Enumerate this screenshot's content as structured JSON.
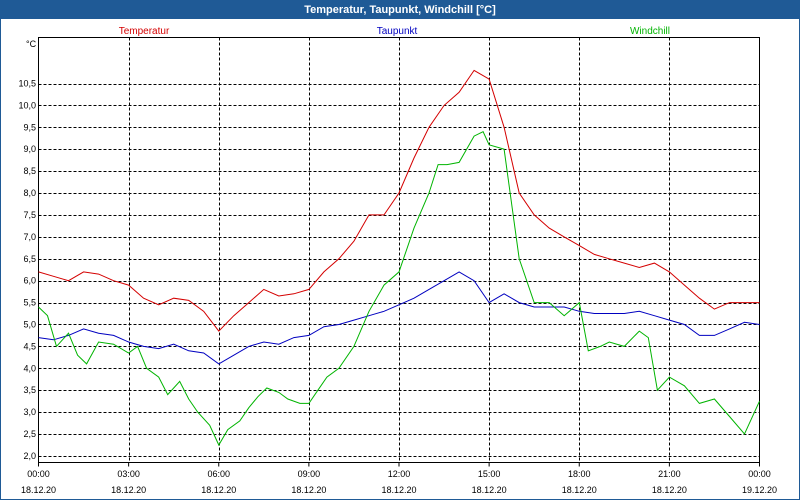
{
  "window": {
    "title": "Temperatur, Taupunkt, Windchill [°C]"
  },
  "chart_data": {
    "type": "line",
    "ylabel": "°C",
    "ylim": [
      1.85,
      11.55
    ],
    "yticks": [
      "2,0",
      "2,5",
      "3,0",
      "3,5",
      "4,0",
      "4,5",
      "5,0",
      "5,5",
      "6,0",
      "6,5",
      "7,0",
      "7,5",
      "8,0",
      "8,5",
      "9,0",
      "9,5",
      "10,0",
      "10,5"
    ],
    "xtick_times": [
      "00:00",
      "03:00",
      "06:00",
      "09:00",
      "12:00",
      "15:00",
      "18:00",
      "21:00",
      "00:00"
    ],
    "xtick_dates": [
      "18.12.20",
      "18.12.20",
      "18.12.20",
      "18.12.20",
      "18.12.20",
      "18.12.20",
      "18.12.20",
      "18.12.20",
      "19.12.20"
    ],
    "grid": true,
    "legend": "top",
    "series": [
      {
        "name": "Temperatur",
        "color": "#d40000",
        "points": [
          [
            0,
            6.2
          ],
          [
            0.5,
            6.1
          ],
          [
            1,
            6.0
          ],
          [
            1.5,
            6.2
          ],
          [
            2,
            6.15
          ],
          [
            2.5,
            6.0
          ],
          [
            3,
            5.9
          ],
          [
            3.5,
            5.6
          ],
          [
            4,
            5.45
          ],
          [
            4.5,
            5.6
          ],
          [
            5,
            5.55
          ],
          [
            5.5,
            5.3
          ],
          [
            6,
            4.85
          ],
          [
            6.5,
            5.2
          ],
          [
            7,
            5.5
          ],
          [
            7.5,
            5.8
          ],
          [
            8,
            5.65
          ],
          [
            8.5,
            5.7
          ],
          [
            9,
            5.8
          ],
          [
            9.5,
            6.2
          ],
          [
            10,
            6.5
          ],
          [
            10.5,
            6.9
          ],
          [
            11,
            7.5
          ],
          [
            11.5,
            7.5
          ],
          [
            12,
            8.0
          ],
          [
            12.5,
            8.8
          ],
          [
            13,
            9.5
          ],
          [
            13.5,
            10.0
          ],
          [
            14,
            10.3
          ],
          [
            14.5,
            10.8
          ],
          [
            15,
            10.6
          ],
          [
            15.5,
            9.5
          ],
          [
            16,
            8.0
          ],
          [
            16.5,
            7.5
          ],
          [
            17,
            7.2
          ],
          [
            17.5,
            7.0
          ],
          [
            18,
            6.8
          ],
          [
            18.5,
            6.6
          ],
          [
            19,
            6.5
          ],
          [
            19.5,
            6.4
          ],
          [
            20,
            6.3
          ],
          [
            20.5,
            6.4
          ],
          [
            21,
            6.2
          ],
          [
            21.5,
            5.9
          ],
          [
            22,
            5.6
          ],
          [
            22.5,
            5.35
          ],
          [
            23,
            5.5
          ],
          [
            23.5,
            5.5
          ],
          [
            24,
            5.5
          ]
        ]
      },
      {
        "name": "Taupunkt",
        "color": "#0000c0",
        "points": [
          [
            0,
            4.7
          ],
          [
            0.5,
            4.65
          ],
          [
            1,
            4.75
          ],
          [
            1.5,
            4.9
          ],
          [
            2,
            4.8
          ],
          [
            2.5,
            4.75
          ],
          [
            3,
            4.6
          ],
          [
            3.5,
            4.5
          ],
          [
            4,
            4.45
          ],
          [
            4.5,
            4.55
          ],
          [
            5,
            4.4
          ],
          [
            5.5,
            4.35
          ],
          [
            6,
            4.1
          ],
          [
            6.5,
            4.3
          ],
          [
            7,
            4.5
          ],
          [
            7.5,
            4.6
          ],
          [
            8,
            4.55
          ],
          [
            8.5,
            4.7
          ],
          [
            9,
            4.75
          ],
          [
            9.5,
            4.95
          ],
          [
            10,
            5.0
          ],
          [
            10.5,
            5.1
          ],
          [
            11,
            5.2
          ],
          [
            11.5,
            5.3
          ],
          [
            12,
            5.45
          ],
          [
            12.5,
            5.6
          ],
          [
            13,
            5.8
          ],
          [
            13.5,
            6.0
          ],
          [
            14,
            6.2
          ],
          [
            14.5,
            6.0
          ],
          [
            15,
            5.5
          ],
          [
            15.5,
            5.7
          ],
          [
            16,
            5.5
          ],
          [
            16.5,
            5.4
          ],
          [
            17,
            5.4
          ],
          [
            17.5,
            5.4
          ],
          [
            18,
            5.3
          ],
          [
            18.5,
            5.25
          ],
          [
            19,
            5.25
          ],
          [
            19.5,
            5.25
          ],
          [
            20,
            5.3
          ],
          [
            20.5,
            5.2
          ],
          [
            21,
            5.1
          ],
          [
            21.5,
            5.0
          ],
          [
            22,
            4.75
          ],
          [
            22.5,
            4.75
          ],
          [
            23,
            4.9
          ],
          [
            23.5,
            5.05
          ],
          [
            24,
            5.0
          ]
        ]
      },
      {
        "name": "Windchill",
        "color": "#00b400",
        "points": [
          [
            0,
            5.4
          ],
          [
            0.3,
            5.2
          ],
          [
            0.6,
            4.5
          ],
          [
            1,
            4.8
          ],
          [
            1.3,
            4.3
          ],
          [
            1.6,
            4.1
          ],
          [
            2,
            4.6
          ],
          [
            2.5,
            4.55
          ],
          [
            3,
            4.35
          ],
          [
            3.3,
            4.5
          ],
          [
            3.6,
            4.0
          ],
          [
            4,
            3.8
          ],
          [
            4.3,
            3.4
          ],
          [
            4.7,
            3.7
          ],
          [
            5,
            3.3
          ],
          [
            5.3,
            3.0
          ],
          [
            5.7,
            2.7
          ],
          [
            6,
            2.25
          ],
          [
            6.3,
            2.6
          ],
          [
            6.7,
            2.8
          ],
          [
            7,
            3.1
          ],
          [
            7.3,
            3.35
          ],
          [
            7.6,
            3.55
          ],
          [
            8,
            3.45
          ],
          [
            8.3,
            3.3
          ],
          [
            8.7,
            3.2
          ],
          [
            9,
            3.2
          ],
          [
            9.3,
            3.5
          ],
          [
            9.6,
            3.8
          ],
          [
            10,
            4.0
          ],
          [
            10.5,
            4.5
          ],
          [
            11,
            5.3
          ],
          [
            11.5,
            5.9
          ],
          [
            12,
            6.2
          ],
          [
            12.5,
            7.2
          ],
          [
            13,
            8.0
          ],
          [
            13.3,
            8.65
          ],
          [
            13.6,
            8.65
          ],
          [
            14,
            8.7
          ],
          [
            14.5,
            9.3
          ],
          [
            14.8,
            9.4
          ],
          [
            15,
            9.1
          ],
          [
            15.5,
            9.0
          ],
          [
            16,
            6.5
          ],
          [
            16.5,
            5.5
          ],
          [
            17,
            5.5
          ],
          [
            17.5,
            5.2
          ],
          [
            18,
            5.5
          ],
          [
            18.3,
            4.4
          ],
          [
            18.7,
            4.5
          ],
          [
            19,
            4.6
          ],
          [
            19.5,
            4.5
          ],
          [
            20,
            4.85
          ],
          [
            20.3,
            4.7
          ],
          [
            20.6,
            3.5
          ],
          [
            21,
            3.8
          ],
          [
            21.5,
            3.6
          ],
          [
            22,
            3.2
          ],
          [
            22.5,
            3.3
          ],
          [
            23,
            2.9
          ],
          [
            23.5,
            2.5
          ],
          [
            24,
            3.25
          ]
        ]
      }
    ]
  }
}
